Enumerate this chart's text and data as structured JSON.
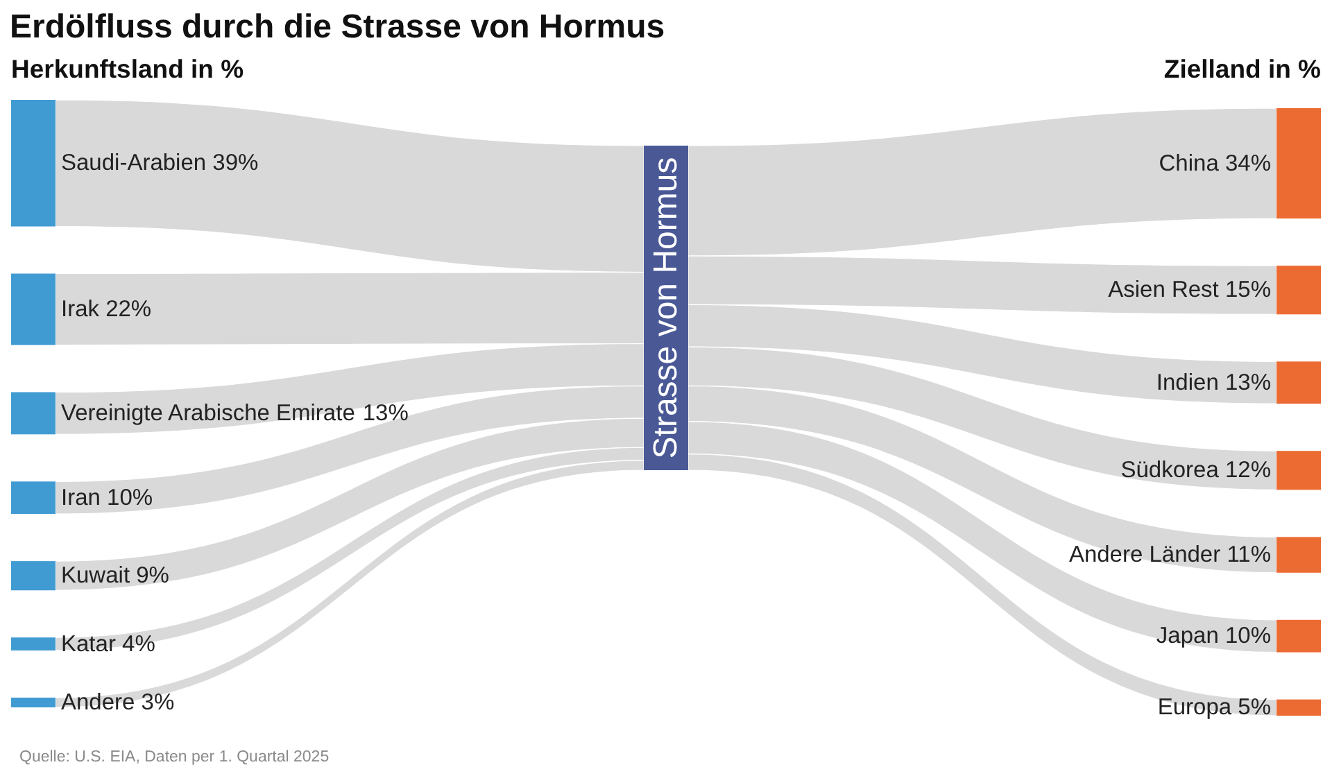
{
  "chart_data": {
    "type": "other",
    "title": "Erdölfluss durch die Strasse von Hormus",
    "categories": [
      "Saudi-Arabien",
      "Irak",
      "Vereinigte Arabische Emirate",
      "Iran",
      "Kuwait",
      "Katar",
      "Andere",
      "Strasse von Hormus",
      "China",
      "Asien Rest",
      "Indien",
      "Südkorea",
      "Andere Länder",
      "Japan",
      "Europa"
    ],
    "series": [
      {
        "name": "Herkunftsland in %",
        "values": [
          39,
          22,
          13,
          10,
          9,
          4,
          3,
          null,
          null,
          null,
          null,
          null,
          null,
          null,
          null
        ],
        "value_labels": [
          "39%",
          "22%",
          "13%",
          "10%",
          "9%",
          "4%",
          "3%",
          null,
          null,
          null,
          null,
          null,
          null,
          null,
          null
        ]
      },
      {
        "name": "Zielland in %",
        "values": [
          null,
          null,
          null,
          null,
          null,
          null,
          null,
          null,
          34,
          15,
          13,
          12,
          11,
          10,
          5
        ],
        "value_labels": [
          null,
          null,
          null,
          null,
          null,
          null,
          null,
          null,
          "34%",
          "15%",
          "13%",
          "12%",
          "11%",
          "10%",
          "5%"
        ]
      }
    ],
    "annotations": [
      "Quelle: U.S. EIA, Daten per 1. Quartal 2025"
    ]
  }
}
